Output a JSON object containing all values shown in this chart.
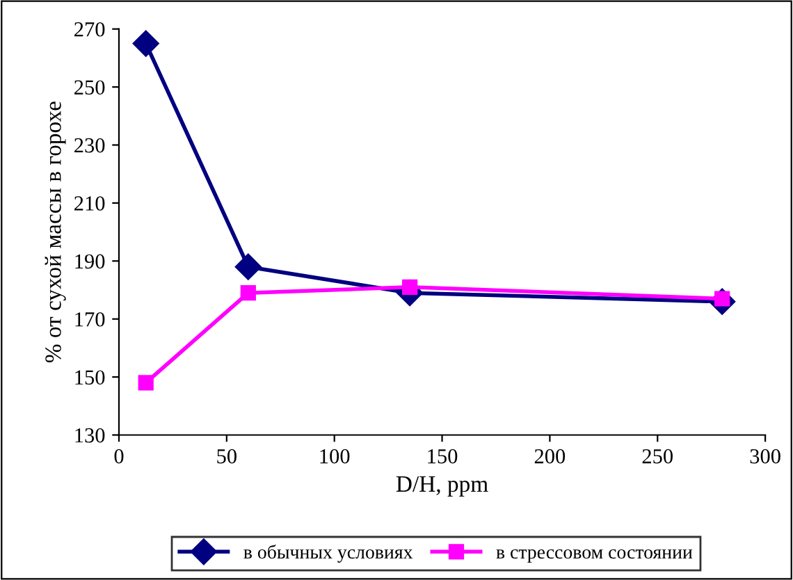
{
  "chart_data": {
    "type": "line",
    "xlabel": "D/H, ppm",
    "ylabel": "% от сухой массы в горохе",
    "x": [
      12.5,
      60,
      135,
      280
    ],
    "series": [
      {
        "name": "в обычных условиях",
        "color": "#000080",
        "values": [
          265,
          188,
          179,
          176
        ],
        "marker": "diamond"
      },
      {
        "name": "в стрессовом состоянии",
        "color": "#ff00ff",
        "values": [
          148,
          179,
          181,
          177
        ],
        "marker": "square"
      }
    ],
    "xlim": [
      0,
      300
    ],
    "xticks": [
      0,
      50,
      100,
      150,
      200,
      250,
      300
    ],
    "ylim": [
      130,
      270
    ],
    "yticks": [
      130,
      150,
      170,
      190,
      210,
      230,
      250,
      270
    ],
    "legend": "bottom",
    "line_style": "solid",
    "grid": false
  }
}
